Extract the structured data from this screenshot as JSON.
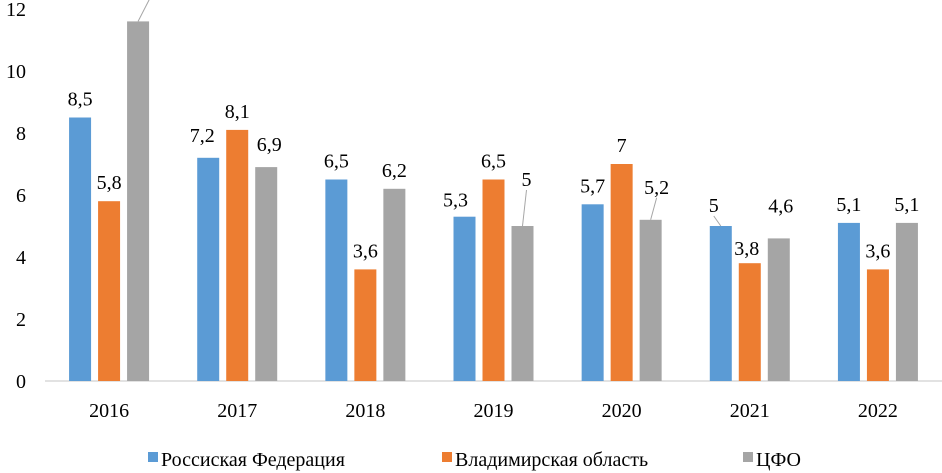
{
  "chart_data": {
    "type": "bar",
    "categories": [
      "2016",
      "2017",
      "2018",
      "2019",
      "2020",
      "2021",
      "2022"
    ],
    "series": [
      {
        "name": "Россиская Федерация",
        "color": "#5b9bd5",
        "values": [
          8.5,
          7.2,
          6.5,
          5.3,
          5.7,
          5,
          5.1
        ],
        "labels": [
          "8,5",
          "7,2",
          "6,5",
          "5,3",
          "5,7",
          "5",
          "5,1"
        ]
      },
      {
        "name": "Владимирская область",
        "color": "#ed7d31",
        "values": [
          5.8,
          8.1,
          3.6,
          6.5,
          7,
          3.8,
          3.6
        ],
        "labels": [
          "5,8",
          "8,1",
          "3,6",
          "6,5",
          "7",
          "3,8",
          "3,6"
        ]
      },
      {
        "name": "ЦФО",
        "color": "#a5a5a5",
        "values": [
          11.6,
          6.9,
          6.2,
          5,
          5.2,
          4.6,
          5.1
        ],
        "labels": [
          "",
          "6,9",
          "6,2",
          "5",
          "5,2",
          "4,6",
          "5,1"
        ]
      }
    ],
    "yticks": [
      0,
      2,
      4,
      6,
      8,
      10,
      12
    ],
    "ylim": [
      0,
      12
    ],
    "legend_position": "bottom",
    "grid": false,
    "axis_color": "#d9d9d9"
  }
}
